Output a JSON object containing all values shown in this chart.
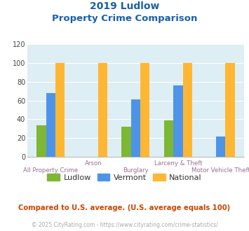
{
  "title_line1": "2019 Ludlow",
  "title_line2": "Property Crime Comparison",
  "groups": [
    {
      "label": "All Property Crime",
      "ludlow": 34,
      "vermont": 68,
      "national": 100
    },
    {
      "label": "Arson",
      "ludlow": 0,
      "vermont": 0,
      "national": 100
    },
    {
      "label": "Burglary",
      "ludlow": 32,
      "vermont": 61,
      "national": 100
    },
    {
      "label": "Larceny & Theft",
      "ludlow": 39,
      "vermont": 76,
      "national": 100
    },
    {
      "label": "Motor Vehicle Theft",
      "ludlow": 0,
      "vermont": 22,
      "national": 100
    }
  ],
  "color_ludlow": "#7db733",
  "color_vermont": "#4d94e8",
  "color_national": "#ffb733",
  "bg_color": "#ddeef4",
  "title_color": "#1a5fa8",
  "xlabel_color": "#9a7090",
  "legend_label_color": "#333333",
  "footnote_color": "#cc4400",
  "credit_color": "#aaaaaa",
  "ylim": [
    0,
    120
  ],
  "yticks": [
    0,
    20,
    40,
    60,
    80,
    100,
    120
  ],
  "footnote": "Compared to U.S. average. (U.S. average equals 100)",
  "credit": "© 2025 CityRating.com - https://www.cityrating.com/crime-statistics/",
  "bar_width": 0.22,
  "top_labels": [
    "",
    "Arson",
    "",
    "Larceny & Theft",
    ""
  ],
  "bottom_labels": [
    "All Property Crime",
    "",
    "Burglary",
    "",
    "Motor Vehicle Theft"
  ]
}
